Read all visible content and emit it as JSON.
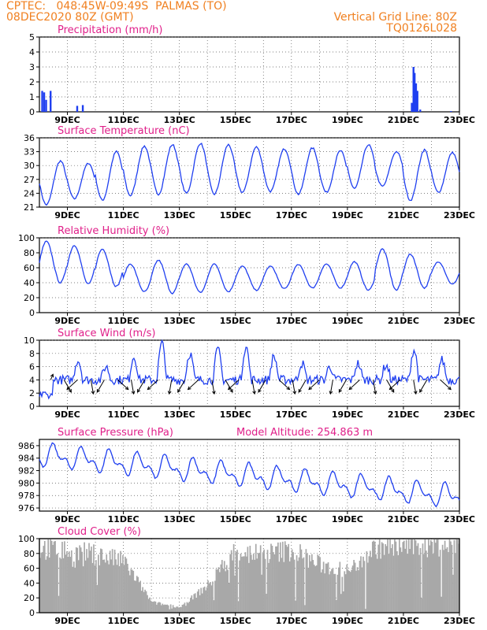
{
  "header": {
    "line1_left": "CPTEC:   048:45W-09:49S  PALMAS (TO)",
    "line2_left": "08DEC2020 80Z (GMT)",
    "line1_right": "Vertical Grid Line: 80Z",
    "line2_right": "TQ0126L028"
  },
  "colors": {
    "header": "#f08020",
    "title": "#e0208a",
    "series": "#1f3ff0",
    "cloud": "#a8a8a8",
    "axis": "#000000"
  },
  "x_ticks": [
    "9DEC",
    "11DEC",
    "13DEC",
    "15DEC",
    "17DEC",
    "19DEC",
    "21DEC",
    "23DEC"
  ],
  "chart_data": [
    {
      "id": "precip",
      "type": "bar",
      "title": "Precipitation (mm/h)",
      "x_unit": "days since 08DEC 00Z",
      "ylim": [
        0,
        5
      ],
      "yticks": [
        0,
        1,
        2,
        3,
        4,
        5
      ],
      "values": [
        [
          0.1,
          1.4
        ],
        [
          0.17,
          1.3
        ],
        [
          0.24,
          0.8
        ],
        [
          0.4,
          1.4
        ],
        [
          1.35,
          0.4
        ],
        [
          1.55,
          0.45
        ],
        [
          13.3,
          0.6
        ],
        [
          13.36,
          3.0
        ],
        [
          13.4,
          2.6
        ],
        [
          13.45,
          1.9
        ],
        [
          13.5,
          1.4
        ],
        [
          13.6,
          0.15
        ],
        [
          14.7,
          0.05
        ]
      ]
    },
    {
      "id": "temp",
      "type": "line",
      "title": "Surface Temperature (nC)",
      "ylim": [
        21,
        36
      ],
      "yticks": [
        21,
        24,
        27,
        30,
        33,
        36
      ],
      "daily": {
        "tmin": [
          21.5,
          22.8,
          22.5,
          23.5,
          23.8,
          24,
          23.8,
          24.2,
          24.4,
          23.8,
          24.2,
          25,
          25.5,
          22.5,
          24.2
        ],
        "tmax": [
          31,
          30.5,
          33,
          34.2,
          34.5,
          34.8,
          34.5,
          34,
          33.6,
          33.8,
          33.2,
          34.5,
          33,
          33.4,
          32.8
        ]
      }
    },
    {
      "id": "rh",
      "type": "line",
      "title": "Relative Humidity (%)",
      "ylim": [
        0,
        100
      ],
      "yticks": [
        0,
        20,
        40,
        60,
        80,
        100
      ],
      "daily": {
        "max": [
          95,
          90,
          85,
          65,
          70,
          65,
          65,
          62,
          62,
          64,
          65,
          68,
          85,
          78,
          68
        ],
        "min": [
          40,
          38,
          35,
          28,
          26,
          27,
          28,
          30,
          32,
          33,
          33,
          30,
          30,
          33,
          38
        ]
      }
    },
    {
      "id": "wind",
      "type": "line",
      "title": "Surface Wind (m/s)",
      "ylim": [
        0,
        10
      ],
      "yticks": [
        0,
        2,
        4,
        6,
        8,
        10
      ],
      "daily_peak": [
        5.5,
        7,
        6,
        7.5,
        9.5,
        8,
        8.5,
        9,
        7.5,
        6.5,
        6,
        6.5,
        6.2,
        8.5,
        7
      ],
      "barbs_note": "direction arrows, mostly toward south-west"
    },
    {
      "id": "pres",
      "type": "line",
      "title": "Surface Pressure (hPa)",
      "subtitle": "Model Altitude: 254.863 m",
      "ylim": [
        975.5,
        987
      ],
      "yticks": [
        976,
        978,
        980,
        982,
        984,
        986
      ],
      "trend": [
        984.5,
        977.8
      ],
      "amplitude": 2.3
    },
    {
      "id": "cloud",
      "type": "area",
      "title": "Cloud Cover (%)",
      "ylim": [
        0,
        100
      ],
      "yticks": [
        0,
        20,
        40,
        60,
        80,
        100
      ],
      "daily_level": [
        95,
        90,
        85,
        75,
        15,
        8,
        40,
        92,
        85,
        92,
        70,
        60,
        96,
        98,
        99,
        99
      ]
    }
  ]
}
